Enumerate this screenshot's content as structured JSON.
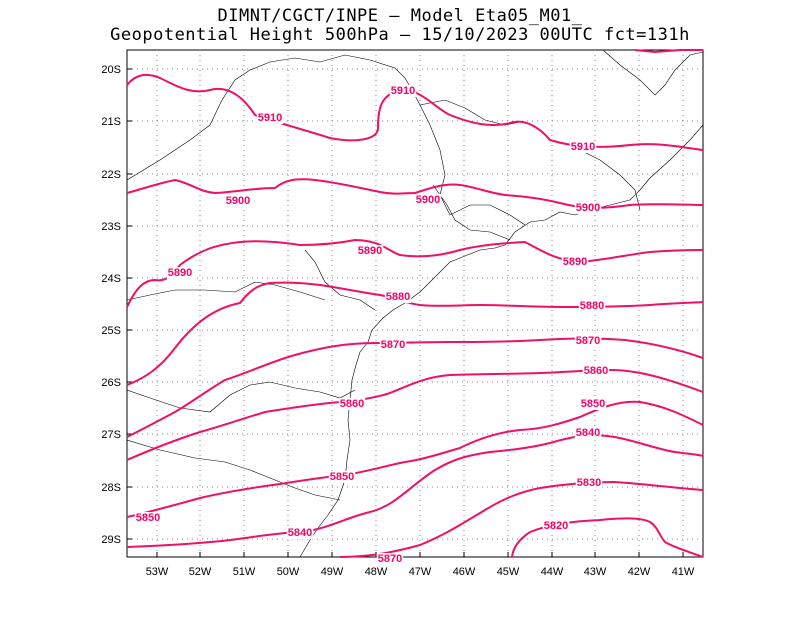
{
  "title": {
    "line1": "DIMNT/CGCT/INPE –  Model Eta05_M01_",
    "line2": "Geopotential Height 500hPa –  15/10/2023 00UTC fct=131h"
  },
  "colors": {
    "contour": "#ee1166",
    "label": "#ff0066",
    "coast": "#000000",
    "grid": "#888888"
  },
  "axes": {
    "lat_labels": [
      "20S",
      "21S",
      "22S",
      "23S",
      "24S",
      "25S",
      "26S",
      "27S",
      "28S",
      "29S"
    ],
    "lon_labels": [
      "53W",
      "52W",
      "51W",
      "50W",
      "49W",
      "48W",
      "47W",
      "46W",
      "45W",
      "44W",
      "43W",
      "42W",
      "41W"
    ]
  },
  "map_data": {
    "type": "contour",
    "variable": "Geopotential Height 500hPa",
    "units": "gpm",
    "region": {
      "lat_range": [
        "19.7S",
        "29.4S"
      ],
      "lon_range": [
        "53.7W",
        "40.6W"
      ]
    },
    "contour_labels": [
      {
        "id": "l5910a",
        "text": "5910"
      },
      {
        "id": "l5910b",
        "text": "5910"
      },
      {
        "id": "l5910c",
        "text": "5910"
      },
      {
        "id": "l5900a",
        "text": "5900"
      },
      {
        "id": "l5900b",
        "text": "5900"
      },
      {
        "id": "l5900c",
        "text": "5900"
      },
      {
        "id": "l5890a",
        "text": "5890"
      },
      {
        "id": "l5890b",
        "text": "5890"
      },
      {
        "id": "l5890c",
        "text": "5890"
      },
      {
        "id": "l5880a",
        "text": "5880"
      },
      {
        "id": "l5880b",
        "text": "5880"
      },
      {
        "id": "l5870a",
        "text": "5870"
      },
      {
        "id": "l5870b",
        "text": "5870"
      },
      {
        "id": "l5870c",
        "text": "5870"
      },
      {
        "id": "l5860a",
        "text": "5860"
      },
      {
        "id": "l5860b",
        "text": "5860"
      },
      {
        "id": "l5850a",
        "text": "5850"
      },
      {
        "id": "l5850b",
        "text": "5850"
      },
      {
        "id": "l5850c",
        "text": "5850"
      },
      {
        "id": "l5840a",
        "text": "5840"
      },
      {
        "id": "l5840b",
        "text": "5840"
      },
      {
        "id": "l5830",
        "text": "5830"
      },
      {
        "id": "l5820",
        "text": "5820"
      }
    ]
  }
}
